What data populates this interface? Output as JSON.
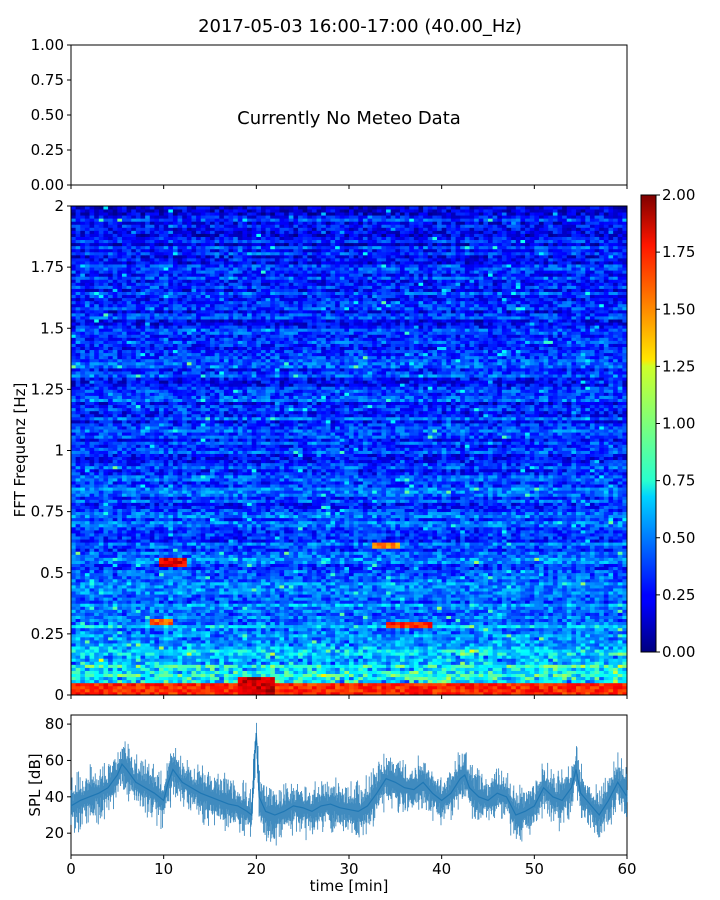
{
  "figure": {
    "title": "2017-05-03 16:00-17:00 (40.00_Hz)"
  },
  "chart_data": [
    {
      "type": "line",
      "role": "meteo",
      "note": "Currently No Meteo Data",
      "ylim": [
        0,
        1
      ],
      "yticks": [
        "0.00",
        "0.25",
        "0.50",
        "0.75",
        "1.00"
      ],
      "xlim": [
        0,
        60
      ],
      "series": []
    },
    {
      "type": "heatmap",
      "role": "spectrogram",
      "ylabel": "FFT Frequenz [Hz]",
      "xlim": [
        0,
        60
      ],
      "ylim": [
        0,
        2
      ],
      "yticks": [
        "0",
        "0.25",
        "0.5",
        "0.75",
        "1",
        "1.25",
        "1.5",
        "1.75",
        "2"
      ],
      "colormap": "jet",
      "color_range": [
        0,
        2
      ],
      "colorbar_ticks": [
        "0.00",
        "0.25",
        "0.50",
        "0.75",
        "1.00",
        "1.25",
        "1.50",
        "1.75",
        "2.00"
      ],
      "features": [
        {
          "x": [
            0,
            60
          ],
          "y": [
            0,
            0.05
          ],
          "value": 1.8
        },
        {
          "x": [
            18,
            22
          ],
          "y": [
            0,
            0.08
          ],
          "value": 2.0
        },
        {
          "x": [
            9.5,
            12.5
          ],
          "y": [
            0.53,
            0.56
          ],
          "value": 1.9
        },
        {
          "x": [
            32.5,
            35.5
          ],
          "y": [
            0.6,
            0.63
          ],
          "value": 1.6
        },
        {
          "x": [
            34,
            39
          ],
          "y": [
            0.27,
            0.3
          ],
          "value": 1.8
        },
        {
          "x": [
            8.5,
            11
          ],
          "y": [
            0.29,
            0.31
          ],
          "value": 1.7
        }
      ]
    },
    {
      "type": "line",
      "role": "spl",
      "ylabel": "SPL [dB]",
      "xlabel": "time [min]",
      "xlim": [
        0,
        60
      ],
      "ylim": [
        8,
        85
      ],
      "xticks": [
        "0",
        "10",
        "20",
        "30",
        "40",
        "50",
        "60"
      ],
      "yticks": [
        "20",
        "40",
        "60",
        "80"
      ],
      "color": "#1f77b4",
      "series": [
        {
          "x": [
            0,
            1,
            2,
            3,
            4,
            5,
            5.5,
            6,
            7,
            8,
            9,
            10,
            10.5,
            11,
            12,
            13,
            14,
            15,
            16,
            17,
            18,
            19,
            19.5,
            19.8,
            20,
            20.3,
            21,
            22,
            23,
            24,
            25,
            26,
            27,
            28,
            29,
            30,
            31,
            32,
            33,
            34,
            35,
            36,
            37,
            38,
            39,
            40,
            41,
            42,
            42.5,
            43,
            44,
            45,
            46,
            47,
            48,
            49,
            50,
            51,
            52,
            53,
            54,
            54.5,
            55,
            56,
            57,
            58,
            59,
            60
          ],
          "y": [
            35,
            38,
            40,
            42,
            45,
            52,
            58,
            55,
            48,
            45,
            42,
            38,
            48,
            55,
            48,
            45,
            42,
            40,
            38,
            36,
            35,
            32,
            30,
            60,
            75,
            40,
            32,
            30,
            32,
            35,
            34,
            32,
            35,
            36,
            34,
            33,
            32,
            35,
            42,
            50,
            48,
            45,
            44,
            48,
            42,
            38,
            42,
            50,
            52,
            45,
            40,
            38,
            42,
            40,
            30,
            32,
            35,
            45,
            40,
            38,
            45,
            55,
            42,
            36,
            30,
            38,
            48,
            40
          ]
        }
      ]
    }
  ]
}
